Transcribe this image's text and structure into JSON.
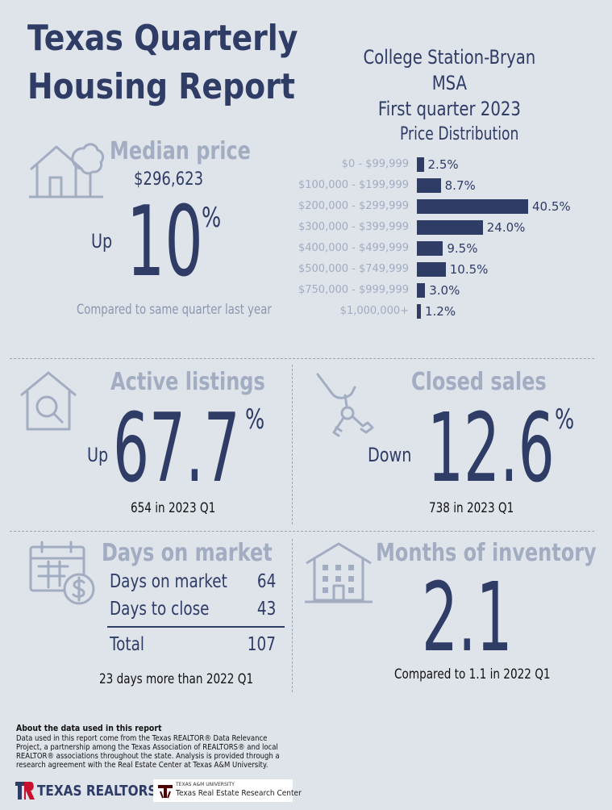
{
  "header": {
    "title_line1": "Texas Quarterly",
    "title_line2": "Housing Report",
    "region": "College Station-Bryan MSA",
    "period": "First quarter 2023"
  },
  "median_price": {
    "label": "Median price",
    "value": "$296,623",
    "direction": "Up",
    "change": "10",
    "percent_sign": "%",
    "comparison": "Compared to same quarter last year",
    "icon": "house-with-tree-icon"
  },
  "price_distribution": {
    "title": "Price Distribution",
    "chart_data": {
      "type": "bar",
      "orientation": "horizontal",
      "categories": [
        "$0 - $99,999",
        "$100,000 - $199,999",
        "$200,000 - $299,999",
        "$300,000 - $399,999",
        "$400,000 - $499,999",
        "$500,000 - $749,999",
        "$750,000 - $999,999",
        "$1,000,000+"
      ],
      "values": [
        2.5,
        8.7,
        40.5,
        24.0,
        9.5,
        10.5,
        3.0,
        1.2
      ],
      "labels": [
        "2.5%",
        "8.7%",
        "40.5%",
        "24.0%",
        "9.5%",
        "10.5%",
        "3.0%",
        "1.2%"
      ],
      "xlim": [
        0,
        40.5
      ]
    }
  },
  "active_listings": {
    "label": "Active listings",
    "direction": "Up",
    "change": "67.7",
    "percent_sign": "%",
    "sub": "654 in 2023 Q1",
    "icon": "house-magnifier-icon"
  },
  "closed_sales": {
    "label": "Closed sales",
    "direction": "Down",
    "change": "12.6",
    "percent_sign": "%",
    "sub": "738 in 2023 Q1",
    "icon": "hand-keys-icon"
  },
  "days_on_market": {
    "label": "Days on market",
    "rows": [
      {
        "key": "Days on market",
        "value": "64"
      },
      {
        "key": "Days to close",
        "value": "43"
      },
      {
        "key": "Total",
        "value": "107"
      }
    ],
    "sub": "23 days more than 2022 Q1",
    "icon": "calendar-dollar-icon"
  },
  "months_inventory": {
    "label": "Months of inventory",
    "value": "2.1",
    "sub": "Compared to 1.1 in 2022 Q1",
    "icon": "apartment-building-icon"
  },
  "footer": {
    "about_title": "About the data used in this report",
    "about_text": "Data used in this report come from the Texas REALTOR® Data Relevance Project, a partnership among the Texas Association of REALTORS® and local REALTOR® associations throughout the state. Analysis is provided through a research agreement with the Real Estate Center at Texas A&M University.",
    "logo1": "TEXAS REALTORS",
    "logo2_small": "TEXAS A&M UNIVERSITY",
    "logo2": "Texas Real Estate Research Center"
  },
  "colors": {
    "navy": "#2e3c66",
    "muted": "#a2adc2",
    "background": "#dfe3ea",
    "brand_red": "#c8102e",
    "aggie_maroon": "#500000"
  }
}
